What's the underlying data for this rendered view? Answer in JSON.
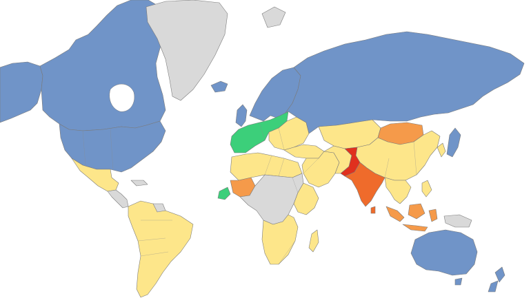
{
  "map": {
    "type": "choropleth-world-map",
    "projection": "mercator",
    "legend": null,
    "title": null,
    "colors": {
      "background": "#ffffff",
      "no_data": "#d9d9d9",
      "blue": "#7094c8",
      "yellow": "#fde68a",
      "orange": "#f59a4a",
      "dark_orange": "#ef6b2b",
      "red": "#e0301e",
      "green": "#3ccf7a"
    },
    "regions": [
      {
        "name": "canada",
        "color": "blue"
      },
      {
        "name": "united-states",
        "color": "blue"
      },
      {
        "name": "alaska",
        "color": "blue"
      },
      {
        "name": "greenland",
        "color": "no_data"
      },
      {
        "name": "iceland",
        "color": "blue"
      },
      {
        "name": "scandinavia",
        "color": "blue"
      },
      {
        "name": "russia",
        "color": "blue"
      },
      {
        "name": "australia",
        "color": "blue"
      },
      {
        "name": "new-zealand",
        "color": "blue"
      },
      {
        "name": "japan",
        "color": "blue"
      },
      {
        "name": "western-europe",
        "color": "green"
      },
      {
        "name": "eastern-europe",
        "color": "yellow"
      },
      {
        "name": "mexico",
        "color": "yellow"
      },
      {
        "name": "central-america",
        "color": "no_data"
      },
      {
        "name": "south-america",
        "color": "yellow"
      },
      {
        "name": "north-africa",
        "color": "yellow"
      },
      {
        "name": "sahel",
        "color": "orange"
      },
      {
        "name": "west-africa",
        "color": "green"
      },
      {
        "name": "central-africa",
        "color": "no_data"
      },
      {
        "name": "east-africa",
        "color": "yellow"
      },
      {
        "name": "southern-africa",
        "color": "yellow"
      },
      {
        "name": "madagascar",
        "color": "yellow"
      },
      {
        "name": "middle-east",
        "color": "yellow"
      },
      {
        "name": "central-asia",
        "color": "yellow"
      },
      {
        "name": "mongolia",
        "color": "orange"
      },
      {
        "name": "china",
        "color": "yellow"
      },
      {
        "name": "pakistan",
        "color": "red"
      },
      {
        "name": "india",
        "color": "dark_orange"
      },
      {
        "name": "southeast-asia",
        "color": "yellow"
      },
      {
        "name": "indonesia",
        "color": "orange"
      },
      {
        "name": "papua",
        "color": "no_data"
      }
    ]
  }
}
